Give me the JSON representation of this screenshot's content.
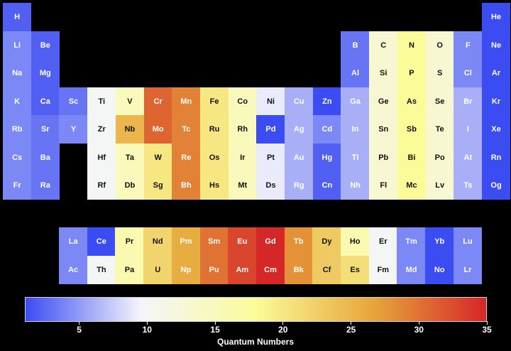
{
  "chart_data": {
    "type": "heatmap",
    "title": "",
    "colorbar": {
      "label": "Quantum Numbers",
      "range": [
        1,
        35
      ],
      "ticks": [
        5,
        10,
        15,
        20,
        25,
        30,
        35
      ],
      "colors": [
        "#3b4cf2",
        "#f4f5fb",
        "#fbfb98",
        "#e7a83c",
        "#d62728"
      ]
    },
    "main_table": [
      {
        "symbol": "H",
        "row": 1,
        "col": 1,
        "value": 2
      },
      {
        "symbol": "He",
        "row": 1,
        "col": 18,
        "value": 1
      },
      {
        "symbol": "Li",
        "row": 2,
        "col": 1,
        "value": 4
      },
      {
        "symbol": "Be",
        "row": 2,
        "col": 2,
        "value": 2
      },
      {
        "symbol": "B",
        "row": 2,
        "col": 13,
        "value": 3
      },
      {
        "symbol": "C",
        "row": 2,
        "col": 14,
        "value": 13
      },
      {
        "symbol": "N",
        "row": 2,
        "col": 15,
        "value": 18
      },
      {
        "symbol": "O",
        "row": 2,
        "col": 16,
        "value": 13
      },
      {
        "symbol": "F",
        "row": 2,
        "col": 17,
        "value": 4
      },
      {
        "symbol": "Ne",
        "row": 2,
        "col": 18,
        "value": 1
      },
      {
        "symbol": "Na",
        "row": 3,
        "col": 1,
        "value": 4
      },
      {
        "symbol": "Mg",
        "row": 3,
        "col": 2,
        "value": 2
      },
      {
        "symbol": "Al",
        "row": 3,
        "col": 13,
        "value": 3
      },
      {
        "symbol": "Si",
        "row": 3,
        "col": 14,
        "value": 13
      },
      {
        "symbol": "P",
        "row": 3,
        "col": 15,
        "value": 18
      },
      {
        "symbol": "S",
        "row": 3,
        "col": 16,
        "value": 13
      },
      {
        "symbol": "Cl",
        "row": 3,
        "col": 17,
        "value": 4
      },
      {
        "symbol": "Ar",
        "row": 3,
        "col": 18,
        "value": 1
      },
      {
        "symbol": "K",
        "row": 4,
        "col": 1,
        "value": 4
      },
      {
        "symbol": "Ca",
        "row": 4,
        "col": 2,
        "value": 2
      },
      {
        "symbol": "Sc",
        "row": 4,
        "col": 3,
        "value": 3
      },
      {
        "symbol": "Ti",
        "row": 4,
        "col": 4,
        "value": 10
      },
      {
        "symbol": "V",
        "row": 4,
        "col": 5,
        "value": 15
      },
      {
        "symbol": "Cr",
        "row": 4,
        "col": 6,
        "value": 31
      },
      {
        "symbol": "Mn",
        "row": 4,
        "col": 7,
        "value": 29
      },
      {
        "symbol": "Fe",
        "row": 4,
        "col": 8,
        "value": 20
      },
      {
        "symbol": "Co",
        "row": 4,
        "col": 9,
        "value": 15
      },
      {
        "symbol": "Ni",
        "row": 4,
        "col": 10,
        "value": 9
      },
      {
        "symbol": "Cu",
        "row": 4,
        "col": 11,
        "value": 6
      },
      {
        "symbol": "Zn",
        "row": 4,
        "col": 12,
        "value": 1
      },
      {
        "symbol": "Ga",
        "row": 4,
        "col": 13,
        "value": 6
      },
      {
        "symbol": "Ge",
        "row": 4,
        "col": 14,
        "value": 13
      },
      {
        "symbol": "As",
        "row": 4,
        "col": 15,
        "value": 18
      },
      {
        "symbol": "Se",
        "row": 4,
        "col": 16,
        "value": 13
      },
      {
        "symbol": "Br",
        "row": 4,
        "col": 17,
        "value": 6
      },
      {
        "symbol": "Kr",
        "row": 4,
        "col": 18,
        "value": 1
      },
      {
        "symbol": "Rb",
        "row": 5,
        "col": 1,
        "value": 4
      },
      {
        "symbol": "Sr",
        "row": 5,
        "col": 2,
        "value": 3
      },
      {
        "symbol": "Y",
        "row": 5,
        "col": 3,
        "value": 4
      },
      {
        "symbol": "Zr",
        "row": 5,
        "col": 4,
        "value": 10
      },
      {
        "symbol": "Nb",
        "row": 5,
        "col": 5,
        "value": 25
      },
      {
        "symbol": "Mo",
        "row": 5,
        "col": 6,
        "value": 31
      },
      {
        "symbol": "Tc",
        "row": 5,
        "col": 7,
        "value": 29
      },
      {
        "symbol": "Ru",
        "row": 5,
        "col": 8,
        "value": 20
      },
      {
        "symbol": "Rh",
        "row": 5,
        "col": 9,
        "value": 15
      },
      {
        "symbol": "Pd",
        "row": 5,
        "col": 10,
        "value": 1
      },
      {
        "symbol": "Ag",
        "row": 5,
        "col": 11,
        "value": 6
      },
      {
        "symbol": "Cd",
        "row": 5,
        "col": 12,
        "value": 4
      },
      {
        "symbol": "In",
        "row": 5,
        "col": 13,
        "value": 6
      },
      {
        "symbol": "Sn",
        "row": 5,
        "col": 14,
        "value": 13
      },
      {
        "symbol": "Sb",
        "row": 5,
        "col": 15,
        "value": 18
      },
      {
        "symbol": "Te",
        "row": 5,
        "col": 16,
        "value": 13
      },
      {
        "symbol": "I",
        "row": 5,
        "col": 17,
        "value": 6
      },
      {
        "symbol": "Xe",
        "row": 5,
        "col": 18,
        "value": 1
      },
      {
        "symbol": "Cs",
        "row": 6,
        "col": 1,
        "value": 4
      },
      {
        "symbol": "Ba",
        "row": 6,
        "col": 2,
        "value": 3
      },
      {
        "symbol": "Hf",
        "row": 6,
        "col": 4,
        "value": 10
      },
      {
        "symbol": "Ta",
        "row": 6,
        "col": 5,
        "value": 15
      },
      {
        "symbol": "W",
        "row": 6,
        "col": 6,
        "value": 20
      },
      {
        "symbol": "Re",
        "row": 6,
        "col": 7,
        "value": 29
      },
      {
        "symbol": "Os",
        "row": 6,
        "col": 8,
        "value": 20
      },
      {
        "symbol": "Ir",
        "row": 6,
        "col": 9,
        "value": 15
      },
      {
        "symbol": "Pt",
        "row": 6,
        "col": 10,
        "value": 9
      },
      {
        "symbol": "Au",
        "row": 6,
        "col": 11,
        "value": 6
      },
      {
        "symbol": "Hg",
        "row": 6,
        "col": 12,
        "value": 2
      },
      {
        "symbol": "Tl",
        "row": 6,
        "col": 13,
        "value": 6
      },
      {
        "symbol": "Pb",
        "row": 6,
        "col": 14,
        "value": 13
      },
      {
        "symbol": "Bi",
        "row": 6,
        "col": 15,
        "value": 18
      },
      {
        "symbol": "Po",
        "row": 6,
        "col": 16,
        "value": 13
      },
      {
        "symbol": "At",
        "row": 6,
        "col": 17,
        "value": 6
      },
      {
        "symbol": "Rn",
        "row": 6,
        "col": 18,
        "value": 1
      },
      {
        "symbol": "Fr",
        "row": 7,
        "col": 1,
        "value": 4
      },
      {
        "symbol": "Ra",
        "row": 7,
        "col": 2,
        "value": 3
      },
      {
        "symbol": "Rf",
        "row": 7,
        "col": 4,
        "value": 10
      },
      {
        "symbol": "Db",
        "row": 7,
        "col": 5,
        "value": 15
      },
      {
        "symbol": "Sg",
        "row": 7,
        "col": 6,
        "value": 20
      },
      {
        "symbol": "Bh",
        "row": 7,
        "col": 7,
        "value": 29
      },
      {
        "symbol": "Hs",
        "row": 7,
        "col": 8,
        "value": 20
      },
      {
        "symbol": "Mt",
        "row": 7,
        "col": 9,
        "value": 15
      },
      {
        "symbol": "Ds",
        "row": 7,
        "col": 10,
        "value": 9
      },
      {
        "symbol": "Rg",
        "row": 7,
        "col": 11,
        "value": 6
      },
      {
        "symbol": "Cn",
        "row": 7,
        "col": 12,
        "value": 2
      },
      {
        "symbol": "Nh",
        "row": 7,
        "col": 13,
        "value": 6
      },
      {
        "symbol": "Fl",
        "row": 7,
        "col": 14,
        "value": 13
      },
      {
        "symbol": "Mc",
        "row": 7,
        "col": 15,
        "value": 18
      },
      {
        "symbol": "Lv",
        "row": 7,
        "col": 16,
        "value": 13
      },
      {
        "symbol": "Ts",
        "row": 7,
        "col": 17,
        "value": 6
      },
      {
        "symbol": "Og",
        "row": 7,
        "col": 18,
        "value": 1
      }
    ],
    "f_block": [
      {
        "symbol": "La",
        "row": 1,
        "col": 1,
        "value": 4
      },
      {
        "symbol": "Ce",
        "row": 1,
        "col": 2,
        "value": 1
      },
      {
        "symbol": "Pr",
        "row": 1,
        "col": 3,
        "value": 16
      },
      {
        "symbol": "Nd",
        "row": 1,
        "col": 4,
        "value": 22
      },
      {
        "symbol": "Pm",
        "row": 1,
        "col": 5,
        "value": 26
      },
      {
        "symbol": "Sm",
        "row": 1,
        "col": 6,
        "value": 30
      },
      {
        "symbol": "Eu",
        "row": 1,
        "col": 7,
        "value": 33
      },
      {
        "symbol": "Gd",
        "row": 1,
        "col": 8,
        "value": 35
      },
      {
        "symbol": "Tb",
        "row": 1,
        "col": 9,
        "value": 28
      },
      {
        "symbol": "Dy",
        "row": 1,
        "col": 10,
        "value": 23
      },
      {
        "symbol": "Ho",
        "row": 1,
        "col": 11,
        "value": 16
      },
      {
        "symbol": "Er",
        "row": 1,
        "col": 12,
        "value": 10
      },
      {
        "symbol": "Tm",
        "row": 1,
        "col": 13,
        "value": 4
      },
      {
        "symbol": "Yb",
        "row": 1,
        "col": 14,
        "value": 1
      },
      {
        "symbol": "Lu",
        "row": 1,
        "col": 15,
        "value": 4
      },
      {
        "symbol": "Ac",
        "row": 2,
        "col": 1,
        "value": 4
      },
      {
        "symbol": "Th",
        "row": 2,
        "col": 2,
        "value": 10
      },
      {
        "symbol": "Pa",
        "row": 2,
        "col": 3,
        "value": 16
      },
      {
        "symbol": "U",
        "row": 2,
        "col": 4,
        "value": 22
      },
      {
        "symbol": "Np",
        "row": 2,
        "col": 5,
        "value": 26
      },
      {
        "symbol": "Pu",
        "row": 2,
        "col": 6,
        "value": 30
      },
      {
        "symbol": "Am",
        "row": 2,
        "col": 7,
        "value": 33
      },
      {
        "symbol": "Cm",
        "row": 2,
        "col": 8,
        "value": 35
      },
      {
        "symbol": "Bk",
        "row": 2,
        "col": 9,
        "value": 28
      },
      {
        "symbol": "Cf",
        "row": 2,
        "col": 10,
        "value": 23
      },
      {
        "symbol": "Es",
        "row": 2,
        "col": 11,
        "value": 21
      },
      {
        "symbol": "Fm",
        "row": 2,
        "col": 12,
        "value": 10
      },
      {
        "symbol": "Md",
        "row": 2,
        "col": 13,
        "value": 4
      },
      {
        "symbol": "No",
        "row": 2,
        "col": 14,
        "value": 1
      },
      {
        "symbol": "Lr",
        "row": 2,
        "col": 15,
        "value": 4
      }
    ]
  }
}
